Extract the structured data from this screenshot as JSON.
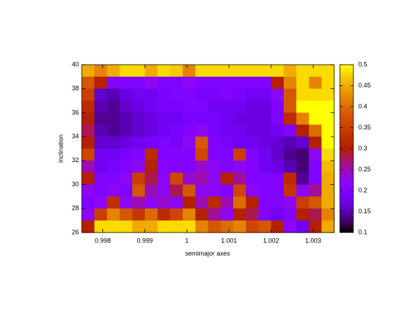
{
  "chart_data": {
    "type": "heatmap",
    "x_label": "semimajor axes",
    "y_label": "inclination",
    "x": [
      0.99765,
      0.99795,
      0.99825,
      0.99855,
      0.99885,
      0.99915,
      0.99945,
      0.99975,
      1.00005,
      1.00035,
      1.00065,
      1.00095,
      1.00125,
      1.00155,
      1.00185,
      1.00215,
      1.00245,
      1.00275,
      1.00305,
      1.00335
    ],
    "y": [
      39.5,
      38.5,
      37.5,
      36.5,
      35.5,
      34.5,
      33.5,
      32.5,
      31.5,
      30.5,
      29.5,
      28.5,
      27.5,
      26.5
    ],
    "z": [
      [
        0.45,
        0.42,
        0.45,
        0.48,
        0.48,
        0.45,
        0.48,
        0.47,
        0.42,
        0.48,
        0.48,
        0.48,
        0.48,
        0.48,
        0.48,
        0.48,
        0.45,
        0.48,
        0.48,
        0.48
      ],
      [
        0.38,
        0.3,
        0.2,
        0.2,
        0.2,
        0.22,
        0.2,
        0.2,
        0.22,
        0.2,
        0.2,
        0.2,
        0.2,
        0.2,
        0.2,
        0.3,
        0.42,
        0.48,
        0.42,
        0.48
      ],
      [
        0.35,
        0.16,
        0.15,
        0.17,
        0.18,
        0.18,
        0.19,
        0.2,
        0.2,
        0.19,
        0.19,
        0.2,
        0.19,
        0.18,
        0.18,
        0.22,
        0.38,
        0.48,
        0.48,
        0.48
      ],
      [
        0.32,
        0.15,
        0.14,
        0.16,
        0.17,
        0.18,
        0.19,
        0.19,
        0.2,
        0.2,
        0.18,
        0.18,
        0.18,
        0.17,
        0.17,
        0.2,
        0.38,
        0.5,
        0.5,
        0.5
      ],
      [
        0.3,
        0.14,
        0.14,
        0.15,
        0.16,
        0.17,
        0.18,
        0.18,
        0.19,
        0.19,
        0.19,
        0.18,
        0.17,
        0.17,
        0.17,
        0.2,
        0.32,
        0.42,
        0.5,
        0.5
      ],
      [
        0.28,
        0.15,
        0.14,
        0.15,
        0.16,
        0.17,
        0.18,
        0.19,
        0.2,
        0.22,
        0.19,
        0.18,
        0.18,
        0.17,
        0.17,
        0.18,
        0.2,
        0.3,
        0.4,
        0.5
      ],
      [
        0.3,
        0.16,
        0.16,
        0.17,
        0.18,
        0.19,
        0.2,
        0.19,
        0.22,
        0.38,
        0.2,
        0.19,
        0.18,
        0.18,
        0.17,
        0.16,
        0.15,
        0.16,
        0.3,
        0.5
      ],
      [
        0.36,
        0.18,
        0.18,
        0.19,
        0.2,
        0.32,
        0.2,
        0.2,
        0.2,
        0.36,
        0.2,
        0.2,
        0.35,
        0.2,
        0.18,
        0.16,
        0.14,
        0.13,
        0.22,
        0.48
      ],
      [
        0.25,
        0.18,
        0.19,
        0.2,
        0.22,
        0.3,
        0.21,
        0.2,
        0.2,
        0.24,
        0.22,
        0.2,
        0.22,
        0.2,
        0.18,
        0.17,
        0.15,
        0.13,
        0.2,
        0.46
      ],
      [
        0.3,
        0.2,
        0.2,
        0.22,
        0.35,
        0.28,
        0.22,
        0.36,
        0.24,
        0.25,
        0.22,
        0.3,
        0.26,
        0.2,
        0.2,
        0.2,
        0.32,
        0.14,
        0.2,
        0.45
      ],
      [
        0.22,
        0.2,
        0.22,
        0.2,
        0.38,
        0.25,
        0.22,
        0.28,
        0.38,
        0.22,
        0.22,
        0.2,
        0.36,
        0.22,
        0.2,
        0.2,
        0.34,
        0.22,
        0.26,
        0.45
      ],
      [
        0.2,
        0.22,
        0.33,
        0.22,
        0.25,
        0.22,
        0.24,
        0.22,
        0.3,
        0.25,
        0.32,
        0.25,
        0.4,
        0.3,
        0.2,
        0.2,
        0.22,
        0.35,
        0.38,
        0.45
      ],
      [
        0.22,
        0.35,
        0.42,
        0.38,
        0.34,
        0.4,
        0.32,
        0.36,
        0.42,
        0.3,
        0.26,
        0.22,
        0.3,
        0.28,
        0.2,
        0.18,
        0.2,
        0.3,
        0.28,
        0.42
      ],
      [
        0.3,
        0.48,
        0.48,
        0.48,
        0.45,
        0.45,
        0.48,
        0.48,
        0.48,
        0.42,
        0.38,
        0.4,
        0.42,
        0.36,
        0.38,
        0.3,
        0.22,
        0.18,
        0.3,
        0.45
      ]
    ],
    "cell_width": 0.0003,
    "cell_height": 1,
    "xlim": [
      0.9975,
      1.0035
    ],
    "xticks": [
      0.998,
      0.999,
      1,
      1.001,
      1.002,
      1.003
    ],
    "ylim": [
      26,
      40
    ],
    "yticks": [
      26,
      28,
      30,
      32,
      34,
      36,
      38,
      40
    ],
    "cblim": [
      0.1,
      0.5
    ],
    "cbticks": [
      0.1,
      0.15,
      0.2,
      0.25,
      0.3,
      0.35,
      0.4,
      0.45,
      0.5
    ]
  }
}
